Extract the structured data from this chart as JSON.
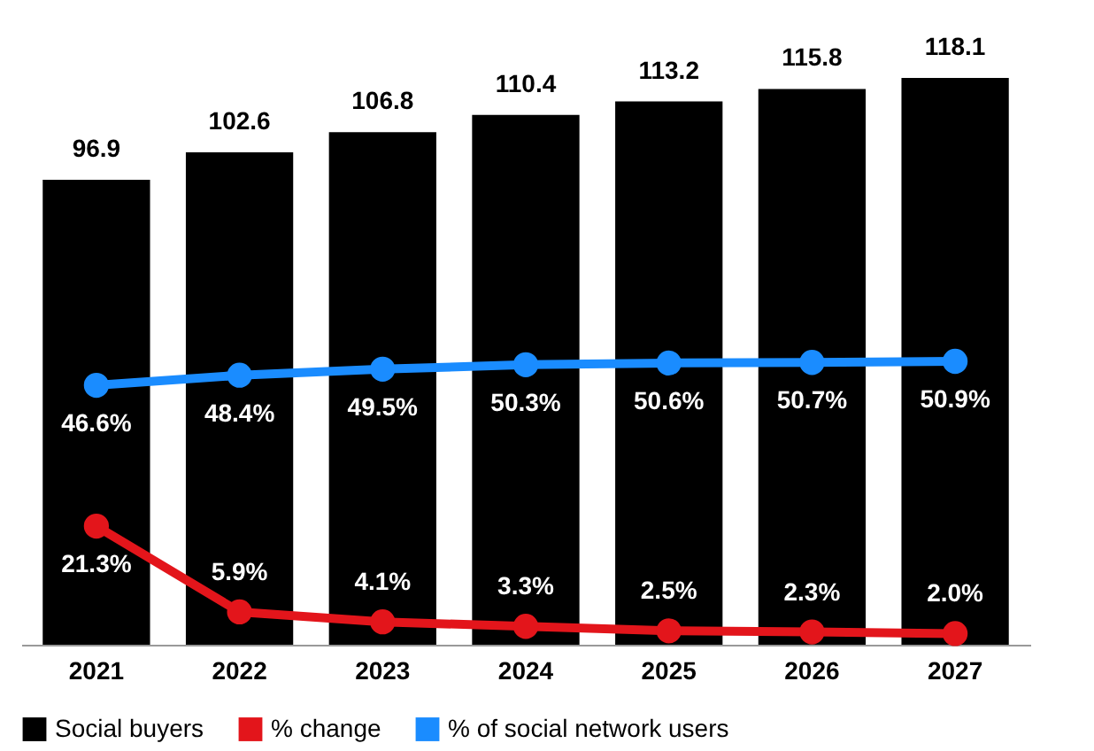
{
  "chart_data": {
    "type": "bar",
    "categories": [
      "2021",
      "2022",
      "2023",
      "2024",
      "2025",
      "2026",
      "2027"
    ],
    "series": [
      {
        "name": "Social buyers",
        "color": "#000000",
        "values": [
          96.9,
          102.6,
          106.8,
          110.4,
          113.2,
          115.8,
          118.1
        ],
        "value_labels": [
          "96.9",
          "102.6",
          "106.8",
          "110.4",
          "113.2",
          "115.8",
          "118.1"
        ]
      },
      {
        "name": "% change",
        "type": "line",
        "axis": "y2",
        "color": "#e3151b",
        "values": [
          21.3,
          5.9,
          4.1,
          3.3,
          2.5,
          2.3,
          2.0
        ],
        "value_labels": [
          "21.3%",
          "5.9%",
          "4.1%",
          "3.3%",
          "2.5%",
          "2.3%",
          "2.0%"
        ]
      },
      {
        "name": "% of social network users",
        "type": "line",
        "axis": "y2",
        "color": "#1a8cff",
        "values": [
          46.6,
          48.4,
          49.5,
          50.3,
          50.6,
          50.7,
          50.9
        ],
        "value_labels": [
          "46.6%",
          "48.4%",
          "49.5%",
          "50.3%",
          "50.6%",
          "50.7%",
          "50.9%"
        ]
      }
    ],
    "tick_labels": "x",
    "grid": false,
    "legend": "bottom",
    "marker": "circle",
    "line_style": "solid"
  }
}
